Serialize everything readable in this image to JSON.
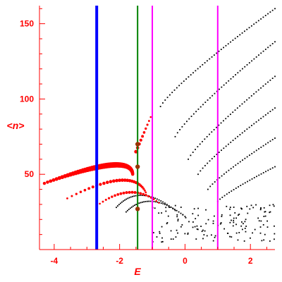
{
  "chart_data": {
    "type": "scatter",
    "xlabel": "E",
    "ylabel": "<n>",
    "xlim": [
      -4.45,
      2.75
    ],
    "ylim": [
      0,
      162
    ],
    "x_ticks": [
      -4,
      -2,
      0,
      2
    ],
    "x_tick_labels": [
      "-4",
      "-2",
      "0",
      "2"
    ],
    "y_ticks": [
      50,
      100,
      150
    ],
    "y_tick_labels": [
      "50",
      "100",
      "150"
    ],
    "grid": false,
    "colors": {
      "axes": "#ff0000",
      "black_points": "#000000",
      "red_points": "#ff0000",
      "dark_points": "#993300",
      "line_blue": "#0000ff",
      "line_green": "#008000",
      "line_magenta": "#ff00ff"
    },
    "vertical_lines": [
      {
        "name": "blue",
        "x": -2.7,
        "color": "#0000ff",
        "width": 4
      },
      {
        "name": "green",
        "x": -1.45,
        "color": "#008000",
        "width": 2
      },
      {
        "name": "magenta-left",
        "x": -1.0,
        "color": "#ff00ff",
        "width": 2
      },
      {
        "name": "magenta-right",
        "x": 1.0,
        "color": "#ff00ff",
        "width": 2
      }
    ],
    "series": [
      {
        "kind": "black",
        "bands": [
          {
            "x0": -0.75,
            "y0": 95,
            "x1": 2.75,
            "y1": 160
          },
          {
            "x0": -0.3,
            "y0": 75,
            "x1": 2.75,
            "y1": 138
          },
          {
            "x0": 0.1,
            "y0": 60,
            "x1": 2.75,
            "y1": 115
          },
          {
            "x0": 0.4,
            "y0": 50,
            "x1": 2.75,
            "y1": 94
          },
          {
            "x0": 0.7,
            "y0": 40,
            "x1": 2.75,
            "y1": 74
          },
          {
            "x0": 1.0,
            "y0": 32,
            "x1": 2.75,
            "y1": 55
          }
        ],
        "low_arcs": [
          {
            "x0": -1.8,
            "y0": 25,
            "xm": -1.0,
            "ym": 32,
            "x1": 0.0,
            "y1": 22
          },
          {
            "x0": -2.1,
            "y0": 28,
            "xm": -1.3,
            "ym": 36,
            "x1": -0.3,
            "y1": 26
          }
        ],
        "cluster": {
          "x_range": [
            -1.0,
            2.75
          ],
          "y_range": [
            5,
            30
          ],
          "count": 150
        }
      },
      {
        "kind": "red",
        "arcs": [
          {
            "x0": -4.3,
            "y0": 44,
            "xm": -2.3,
            "ym": 56,
            "x1": -1.6,
            "y1": 50,
            "size_start": 2.2,
            "size_end": 4.0,
            "count": 55
          },
          {
            "x0": -3.6,
            "y0": 34,
            "xm": -2.0,
            "ym": 46,
            "x1": -1.2,
            "y1": 38,
            "size_start": 1.4,
            "size_end": 2.4,
            "count": 28
          },
          {
            "x0": -2.7,
            "y0": 29,
            "xm": -1.7,
            "ym": 38,
            "x1": -0.8,
            "y1": 31,
            "size_start": 1.2,
            "size_end": 2.0,
            "count": 22
          }
        ],
        "upper_branch": {
          "x0": -1.5,
          "y0": 65,
          "x1": -1.05,
          "y1": 88,
          "count": 9
        }
      },
      {
        "kind": "dark",
        "points": [
          {
            "x": -1.45,
            "y": 55
          },
          {
            "x": -1.45,
            "y": 27
          },
          {
            "x": -1.45,
            "y": 70
          }
        ]
      }
    ]
  }
}
